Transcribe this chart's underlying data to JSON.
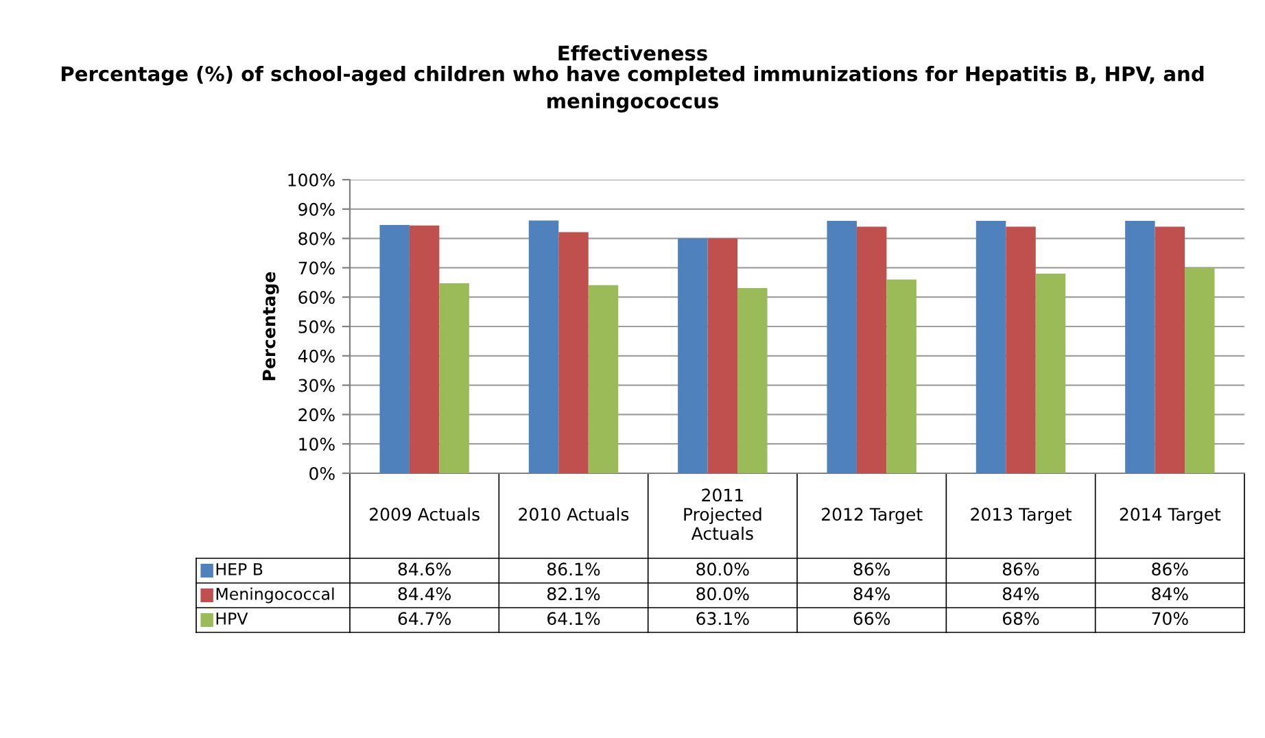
{
  "chart_data": {
    "type": "bar",
    "title": "Effectiveness",
    "subtitle": "Percentage (%) of school-aged children who have completed immunizations for Hepatitis B, HPV, and meningococcus",
    "ylabel": "Percentage",
    "categories": [
      "2009 Actuals",
      "2010 Actuals",
      "2011 Projected Actuals",
      "2012 Target",
      "2013 Target",
      "2014 Target"
    ],
    "series": [
      {
        "name": "HEP B",
        "color": "#4f81bd",
        "values": [
          84.6,
          86.1,
          80.0,
          86,
          86,
          86
        ],
        "value_labels": [
          "84.6%",
          "86.1%",
          "80.0%",
          "86%",
          "86%",
          "86%"
        ]
      },
      {
        "name": "Meningococcal",
        "color": "#c0504d",
        "values": [
          84.4,
          82.1,
          80.0,
          84,
          84,
          84
        ],
        "value_labels": [
          "84.4%",
          "82.1%",
          "80.0%",
          "84%",
          "84%",
          "84%"
        ]
      },
      {
        "name": "HPV",
        "color": "#9bbb59",
        "values": [
          64.7,
          64.1,
          63.1,
          66,
          68,
          70
        ],
        "value_labels": [
          "64.7%",
          "64.1%",
          "63.1%",
          "66%",
          "68%",
          "70%"
        ]
      }
    ],
    "ylim": [
      0,
      100
    ],
    "yticks": [
      {
        "value": 0,
        "label": "0%"
      },
      {
        "value": 10,
        "label": "10%"
      },
      {
        "value": 20,
        "label": "20%"
      },
      {
        "value": 30,
        "label": "30%"
      },
      {
        "value": 40,
        "label": "40%"
      },
      {
        "value": 50,
        "label": "50%"
      },
      {
        "value": 60,
        "label": "60%"
      },
      {
        "value": 70,
        "label": "70%"
      },
      {
        "value": 80,
        "label": "80%"
      },
      {
        "value": 90,
        "label": "90%"
      },
      {
        "value": 100,
        "label": "100%"
      }
    ],
    "grid": "y",
    "legend": "bottom left"
  }
}
